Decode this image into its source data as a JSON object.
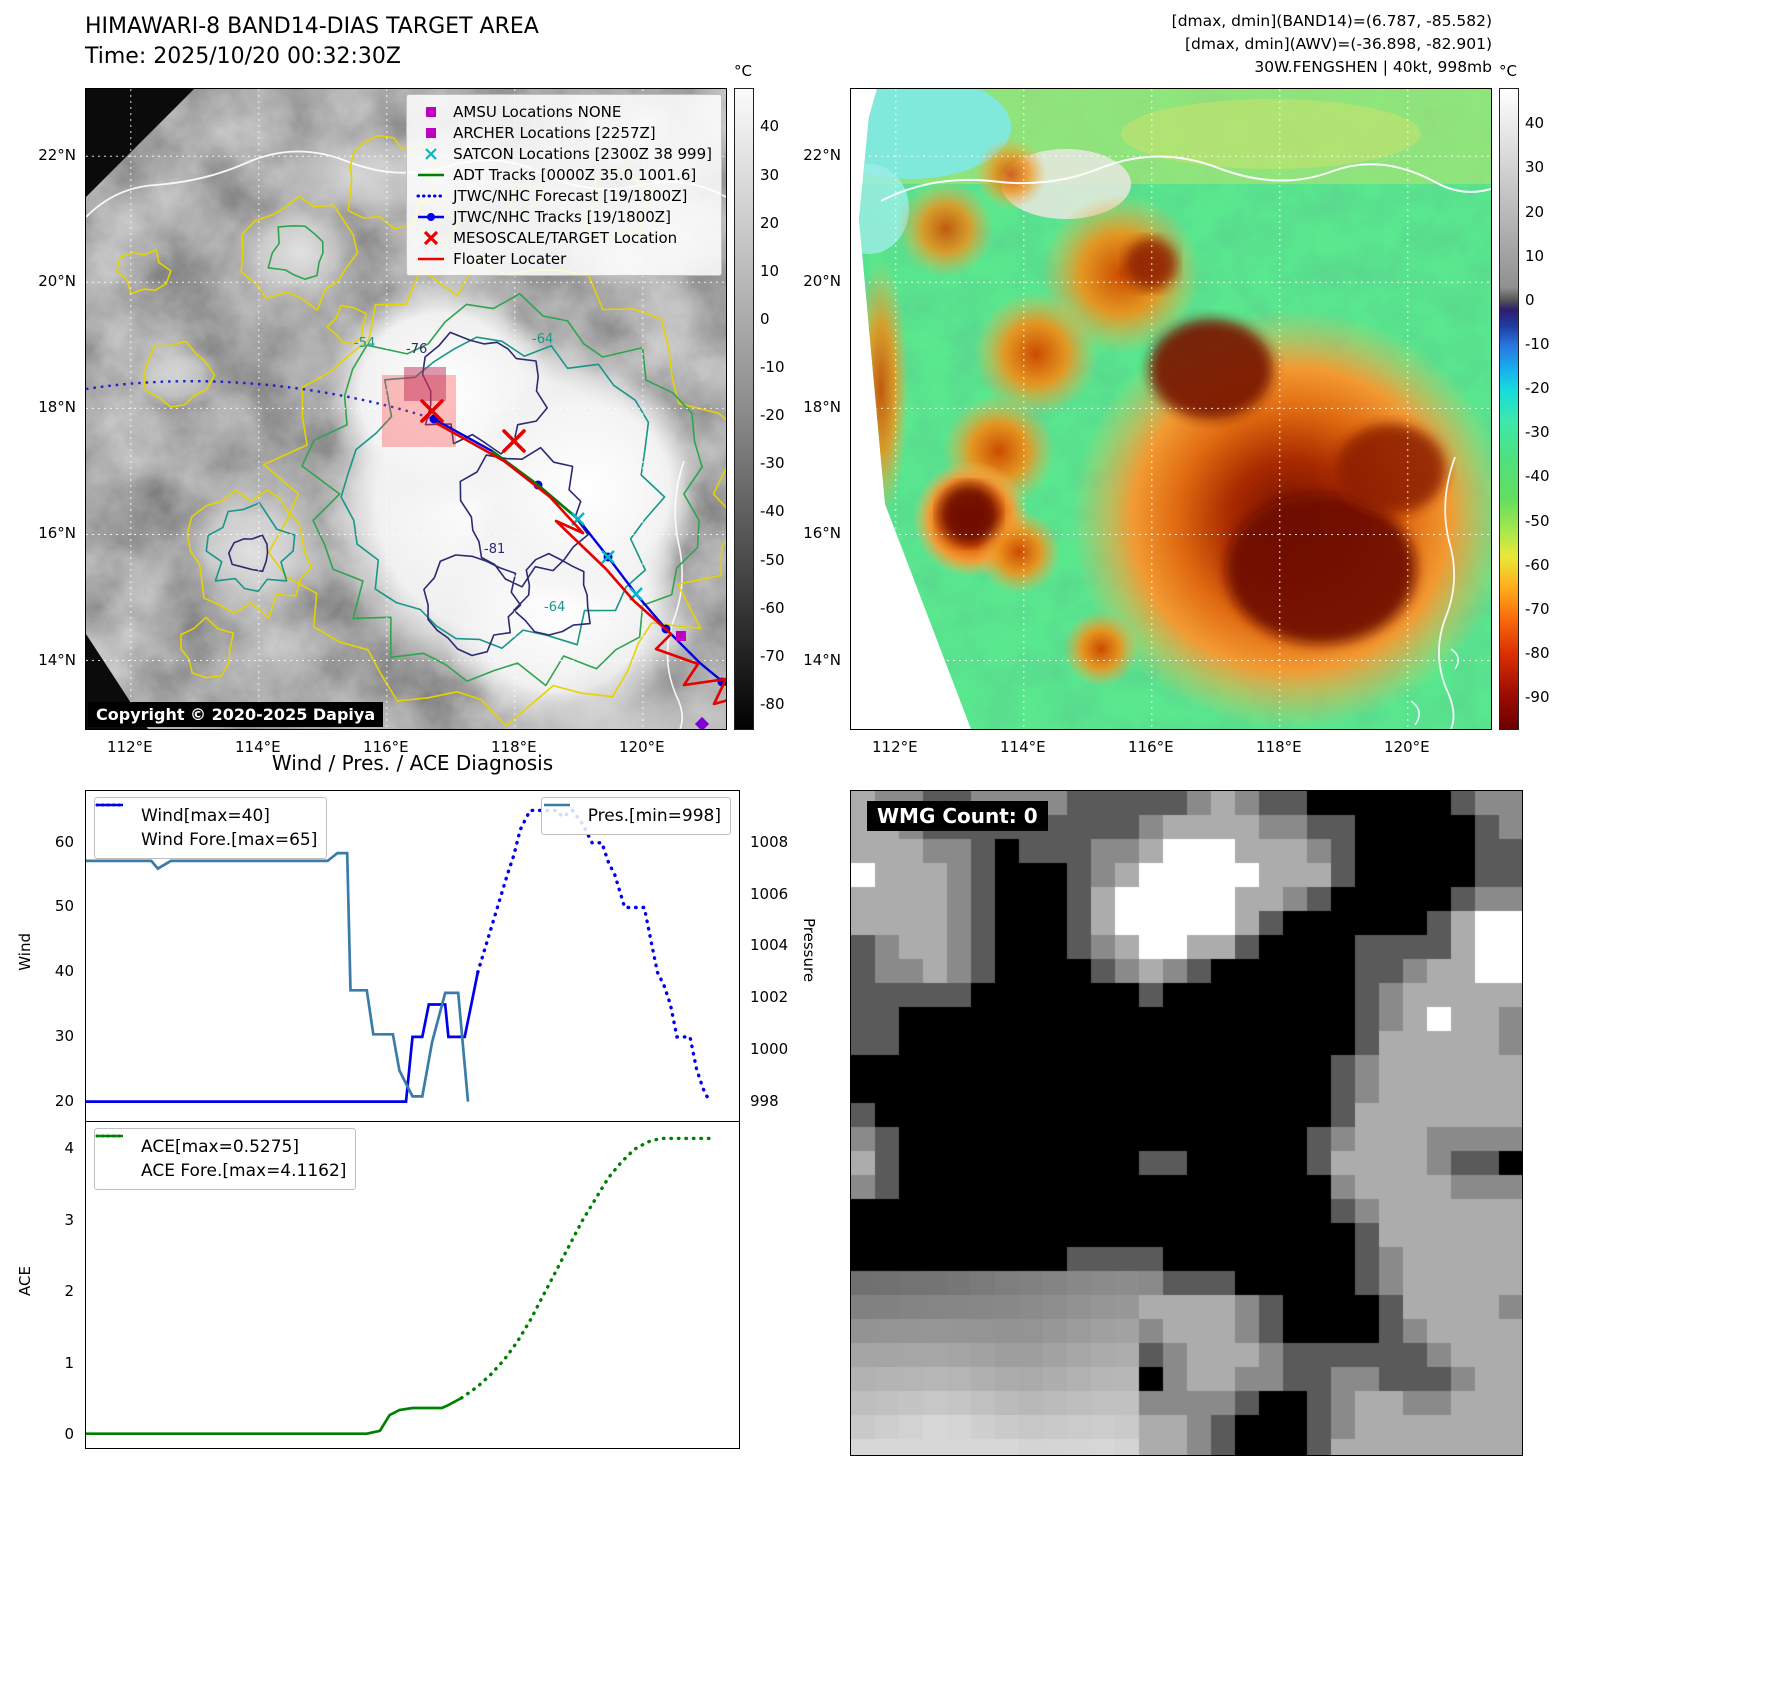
{
  "band14_panel": {
    "title": "HIMAWARI-8 BAND14-DIAS TARGET AREA",
    "subtitle": "Time: 2025/10/20 00:32:30Z",
    "copyright": "Copyright © 2020-2025 Dapiya",
    "legend_items": [
      {
        "marker": "square",
        "color": "#bf00bf",
        "label": "AMSU Locations NONE"
      },
      {
        "marker": "square",
        "color": "#bf00bf",
        "label": "ARCHER Locations [2257Z]"
      },
      {
        "marker": "x",
        "color": "#00b8c8",
        "label": "SATCON Locations [2300Z 38 999]"
      },
      {
        "marker": "line",
        "color": "#007f00",
        "label": "ADT Tracks [0000Z 35.0 1001.6]"
      },
      {
        "marker": "dotted",
        "color": "#0000ee",
        "label": "JTWC/NHC Forecast [19/1800Z]"
      },
      {
        "marker": "line-dot",
        "color": "#0000ee",
        "label": "JTWC/NHC Tracks [19/1800Z]"
      },
      {
        "marker": "X",
        "color": "#ee0000",
        "label": "MESOSCALE/TARGET Location"
      },
      {
        "marker": "line",
        "color": "#ee0000",
        "label": "Floater Locater"
      }
    ],
    "lat_ticks": [
      "22°N",
      "20°N",
      "18°N",
      "16°N",
      "14°N"
    ],
    "lon_ticks": [
      "112°E",
      "114°E",
      "116°E",
      "118°E",
      "120°E"
    ],
    "contour_labels": [
      "-64",
      "-76",
      "-81",
      "-54",
      "-64"
    ],
    "colorbar": {
      "unit": "°C",
      "ticks": [
        40,
        30,
        20,
        10,
        0,
        -10,
        -20,
        -30,
        -40,
        -50,
        -60,
        -70,
        -80
      ],
      "vmax": 48,
      "vmin": -85,
      "stops": [
        [
          "0%",
          "#fbfbfb"
        ],
        [
          "50%",
          "#8c8c8c"
        ],
        [
          "100%",
          "#020202"
        ]
      ]
    }
  },
  "awv_panel": {
    "header_lines": [
      "[dmax, dmin](BAND14)=(6.787, -85.582)",
      "[dmax, dmin](AWV)=(-36.898, -82.901)",
      "30W.FENGSHEN | 40kt, 998mb"
    ],
    "lat_ticks": [
      "22°N",
      "20°N",
      "18°N",
      "16°N",
      "14°N"
    ],
    "lon_ticks": [
      "112°E",
      "114°E",
      "116°E",
      "118°E",
      "120°E"
    ],
    "colorbar": {
      "unit": "°C",
      "ticks": [
        40,
        30,
        20,
        10,
        0,
        -10,
        -20,
        -30,
        -40,
        -50,
        -60,
        -70,
        -80,
        -90
      ],
      "vmax": 48,
      "vmin": -97,
      "stops": [
        [
          "0%",
          "#ffffff"
        ],
        [
          "31%",
          "#909090"
        ],
        [
          "33%",
          "#555555"
        ],
        [
          "34.5%",
          "#2d1e6e"
        ],
        [
          "37%",
          "#1f3c9e"
        ],
        [
          "40%",
          "#2a74e0"
        ],
        [
          "44%",
          "#17b2ee"
        ],
        [
          "47%",
          "#15dcdc"
        ],
        [
          "52%",
          "#3ee8aa"
        ],
        [
          "58%",
          "#4fe07c"
        ],
        [
          "64%",
          "#63de61"
        ],
        [
          "69%",
          "#a5e84d"
        ],
        [
          "73%",
          "#e9e937"
        ],
        [
          "78%",
          "#ffac1c"
        ],
        [
          "83%",
          "#f8680d"
        ],
        [
          "88%",
          "#dd3104"
        ],
        [
          "94%",
          "#a30f02"
        ],
        [
          "100%",
          "#6b0000"
        ]
      ]
    }
  },
  "wmg_panel": {
    "label": "WMG Count: 0",
    "palette": [
      "#000000",
      "#5a5a5a",
      "#8a8a8a",
      "#acacac",
      "#ffffff"
    ]
  },
  "chart_data": [
    {
      "type": "line",
      "title": "Wind / Pres. / ACE Diagnosis",
      "ylabel_left": "Wind",
      "ylabel_right": "Pressure",
      "ylim_left": [
        17,
        68
      ],
      "yticks_left": [
        20,
        30,
        40,
        50,
        60
      ],
      "ylim_right": [
        997.25,
        1010.0
      ],
      "yticks_right": [
        998,
        1000,
        1002,
        1004,
        1006,
        1008
      ],
      "grid": false,
      "legend_position": "upper left / upper right",
      "series": [
        {
          "name": "Wind[max=40]",
          "style": "solid",
          "color": "#0000ee",
          "axis": "left",
          "points": [
            [
              0.0,
              20
            ],
            [
              0.49,
              20
            ],
            [
              0.5,
              30
            ],
            [
              0.515,
              30
            ],
            [
              0.525,
              35
            ],
            [
              0.55,
              35
            ],
            [
              0.555,
              30
            ],
            [
              0.58,
              30
            ],
            [
              0.59,
              35
            ],
            [
              0.6,
              40
            ]
          ]
        },
        {
          "name": "Wind Fore.[max=65]",
          "style": "dotted",
          "color": "#0000ee",
          "axis": "left",
          "points": [
            [
              0.6,
              40
            ],
            [
              0.615,
              45
            ],
            [
              0.63,
              50
            ],
            [
              0.645,
              55
            ],
            [
              0.655,
              58
            ],
            [
              0.665,
              62
            ],
            [
              0.68,
              65
            ],
            [
              0.72,
              65
            ],
            [
              0.73,
              64
            ],
            [
              0.745,
              65
            ],
            [
              0.76,
              63
            ],
            [
              0.775,
              60
            ],
            [
              0.79,
              60
            ],
            [
              0.8,
              57
            ],
            [
              0.81,
              55
            ],
            [
              0.825,
              50
            ],
            [
              0.855,
              50
            ],
            [
              0.865,
              45
            ],
            [
              0.875,
              40
            ],
            [
              0.885,
              38
            ],
            [
              0.895,
              35
            ],
            [
              0.905,
              30
            ],
            [
              0.925,
              30
            ],
            [
              0.935,
              25
            ],
            [
              0.945,
              22
            ],
            [
              0.955,
              20
            ]
          ]
        },
        {
          "name": "Pres.[min=998]",
          "style": "solid",
          "color": "#3a7ca8",
          "axis": "right",
          "points": [
            [
              0.0,
              1007.3
            ],
            [
              0.1,
              1007.3
            ],
            [
              0.11,
              1007.0
            ],
            [
              0.13,
              1007.3
            ],
            [
              0.37,
              1007.3
            ],
            [
              0.385,
              1007.6
            ],
            [
              0.4,
              1007.6
            ],
            [
              0.405,
              1002.3
            ],
            [
              0.43,
              1002.3
            ],
            [
              0.44,
              1000.6
            ],
            [
              0.47,
              1000.6
            ],
            [
              0.48,
              999.2
            ],
            [
              0.5,
              998.2
            ],
            [
              0.515,
              998.2
            ],
            [
              0.53,
              1000.3
            ],
            [
              0.55,
              1002.2
            ],
            [
              0.57,
              1002.2
            ],
            [
              0.585,
              998.0
            ]
          ]
        }
      ]
    },
    {
      "type": "line",
      "ylabel_left": "ACE",
      "ylim_left": [
        -0.18,
        4.38
      ],
      "yticks_left": [
        0,
        1,
        2,
        3,
        4
      ],
      "grid": false,
      "legend_position": "upper left",
      "series": [
        {
          "name": "ACE[max=0.5275]",
          "style": "solid",
          "color": "#008000",
          "axis": "left",
          "points": [
            [
              0.0,
              0.02
            ],
            [
              0.43,
              0.02
            ],
            [
              0.45,
              0.06
            ],
            [
              0.465,
              0.28
            ],
            [
              0.48,
              0.35
            ],
            [
              0.5,
              0.38
            ],
            [
              0.545,
              0.38
            ],
            [
              0.555,
              0.42
            ],
            [
              0.575,
              0.52
            ]
          ]
        },
        {
          "name": "ACE Fore.[max=4.1162]",
          "style": "dotted",
          "color": "#008000",
          "axis": "left",
          "points": [
            [
              0.575,
              0.52
            ],
            [
              0.6,
              0.68
            ],
            [
              0.62,
              0.85
            ],
            [
              0.64,
              1.05
            ],
            [
              0.66,
              1.3
            ],
            [
              0.68,
              1.6
            ],
            [
              0.7,
              1.95
            ],
            [
              0.72,
              2.3
            ],
            [
              0.74,
              2.65
            ],
            [
              0.76,
              3.0
            ],
            [
              0.78,
              3.3
            ],
            [
              0.8,
              3.6
            ],
            [
              0.82,
              3.82
            ],
            [
              0.84,
              4.0
            ],
            [
              0.86,
              4.1
            ],
            [
              0.88,
              4.15
            ],
            [
              0.955,
              4.15
            ]
          ]
        }
      ]
    }
  ]
}
